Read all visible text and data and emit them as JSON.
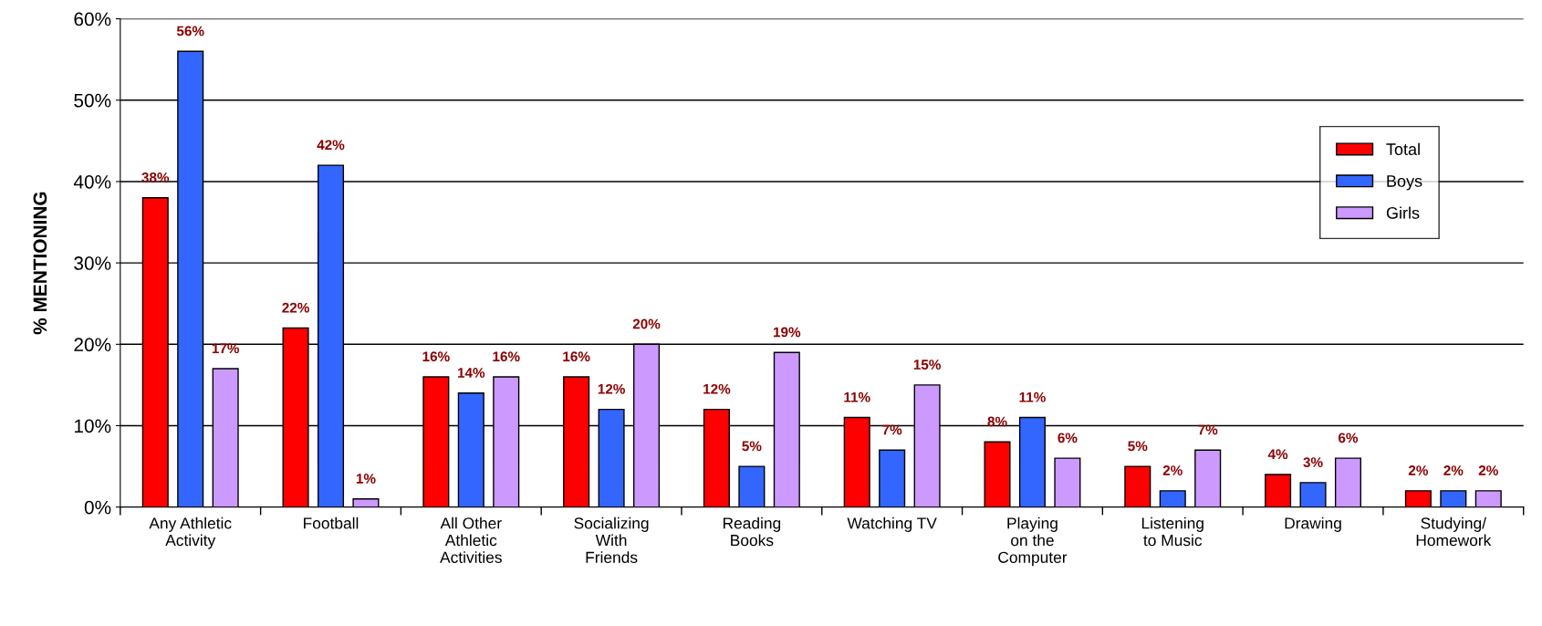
{
  "chart_data": {
    "type": "bar",
    "ylabel": "% MENTIONING",
    "categories": [
      "Any Athletic\nActivity",
      "Football",
      "All Other\nAthletic\nActivities",
      "Socializing\nWith\nFriends",
      "Reading\nBooks",
      "Watching TV",
      "Playing\non the\nComputer",
      "Listening\nto Music",
      "Drawing",
      "Studying/\nHomework"
    ],
    "series": [
      {
        "name": "Total",
        "color": "#ff0000",
        "values": [
          38,
          22,
          16,
          16,
          12,
          11,
          8,
          5,
          4,
          2
        ],
        "value_labels": [
          "38%",
          "22%",
          "16%",
          "16%",
          "12%",
          "11%",
          "8%",
          "5%",
          "4%",
          "2%"
        ]
      },
      {
        "name": "Boys",
        "color": "#3366ff",
        "values": [
          56,
          42,
          14,
          12,
          5,
          7,
          11,
          2,
          3,
          2
        ],
        "value_labels": [
          "56%",
          "42%",
          "14%",
          "12%",
          "5%",
          "7%",
          "11%",
          "2%",
          "3%",
          "2%"
        ]
      },
      {
        "name": "Girls",
        "color": "#cc99ff",
        "values": [
          17,
          1,
          16,
          20,
          19,
          15,
          6,
          7,
          6,
          2
        ],
        "value_labels": [
          "17%",
          "1%",
          "16%",
          "20%",
          "19%",
          "15%",
          "6%",
          "7%",
          "6%",
          "2%"
        ]
      }
    ],
    "ylim": [
      0,
      60
    ],
    "yticks": [
      {
        "value": 0,
        "label": "0%"
      },
      {
        "value": 10,
        "label": "10%"
      },
      {
        "value": 20,
        "label": "20%"
      },
      {
        "value": 30,
        "label": "30%"
      },
      {
        "value": 40,
        "label": "40%"
      },
      {
        "value": 50,
        "label": "50%"
      },
      {
        "value": 60,
        "label": "60%"
      }
    ],
    "grid": "y",
    "legend": "top right"
  }
}
